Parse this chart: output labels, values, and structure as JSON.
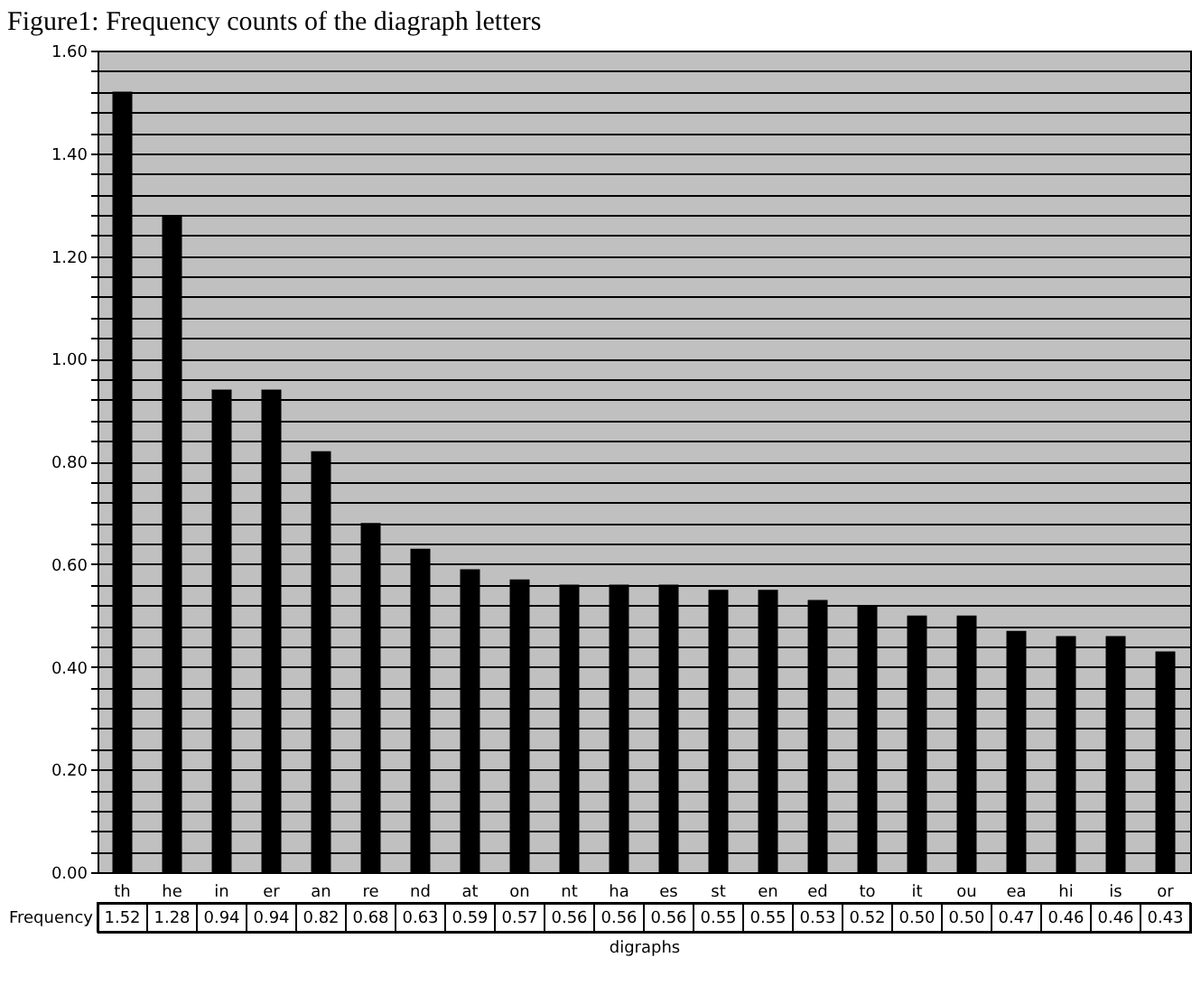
{
  "chart_data": {
    "type": "bar",
    "title": "Figure1: Frequency counts of the diagraph letters",
    "xlabel": "digraphs",
    "categories": [
      "th",
      "he",
      "in",
      "er",
      "an",
      "re",
      "nd",
      "at",
      "on",
      "nt",
      "ha",
      "es",
      "st",
      "en",
      "ed",
      "to",
      "it",
      "ou",
      "ea",
      "hi",
      "is",
      "or"
    ],
    "series": [
      {
        "name": "Frequency",
        "color": "#000000",
        "values": [
          1.52,
          1.28,
          0.94,
          0.94,
          0.82,
          0.68,
          0.63,
          0.59,
          0.57,
          0.56,
          0.56,
          0.56,
          0.55,
          0.55,
          0.53,
          0.52,
          0.5,
          0.5,
          0.47,
          0.46,
          0.46,
          0.43
        ],
        "value_labels": [
          "1.52",
          "1.28",
          "0.94",
          "0.94",
          "0.82",
          "0.68",
          "0.63",
          "0.59",
          "0.57",
          "0.56",
          "0.56",
          "0.56",
          "0.55",
          "0.55",
          "0.53",
          "0.52",
          "0.50",
          "0.50",
          "0.47",
          "0.46",
          "0.46",
          "0.43"
        ]
      }
    ],
    "ylim": [
      0,
      1.6
    ],
    "yticks": [
      {
        "value": 0,
        "label": "0.00"
      },
      {
        "value": 0.04,
        "label": null
      },
      {
        "value": 0.08,
        "label": null
      },
      {
        "value": 0.12,
        "label": null
      },
      {
        "value": 0.16,
        "label": null
      },
      {
        "value": 0.2,
        "label": "0.20"
      },
      {
        "value": 0.24,
        "label": null
      },
      {
        "value": 0.28,
        "label": null
      },
      {
        "value": 0.32,
        "label": null
      },
      {
        "value": 0.36,
        "label": null
      },
      {
        "value": 0.4,
        "label": "0.40"
      },
      {
        "value": 0.44,
        "label": null
      },
      {
        "value": 0.48,
        "label": null
      },
      {
        "value": 0.52,
        "label": null
      },
      {
        "value": 0.56,
        "label": null
      },
      {
        "value": 0.6,
        "label": "0.60"
      },
      {
        "value": 0.64,
        "label": null
      },
      {
        "value": 0.68,
        "label": null
      },
      {
        "value": 0.72,
        "label": null
      },
      {
        "value": 0.76,
        "label": null
      },
      {
        "value": 0.8,
        "label": "0.80"
      },
      {
        "value": 0.84,
        "label": null
      },
      {
        "value": 0.88,
        "label": null
      },
      {
        "value": 0.92,
        "label": null
      },
      {
        "value": 0.96,
        "label": null
      },
      {
        "value": 1,
        "label": "1.00"
      },
      {
        "value": 1.04,
        "label": null
      },
      {
        "value": 1.08,
        "label": null
      },
      {
        "value": 1.12,
        "label": null
      },
      {
        "value": 1.16,
        "label": null
      },
      {
        "value": 1.2,
        "label": "1.20"
      },
      {
        "value": 1.24,
        "label": null
      },
      {
        "value": 1.28,
        "label": null
      },
      {
        "value": 1.32,
        "label": null
      },
      {
        "value": 1.36,
        "label": null
      },
      {
        "value": 1.4,
        "label": "1.40"
      },
      {
        "value": 1.44,
        "label": null
      },
      {
        "value": 1.48,
        "label": null
      },
      {
        "value": 1.52,
        "label": null
      },
      {
        "value": 1.56,
        "label": null
      },
      {
        "value": 1.6,
        "label": "1.60"
      }
    ],
    "grid": "y",
    "legend": "bottom left"
  }
}
